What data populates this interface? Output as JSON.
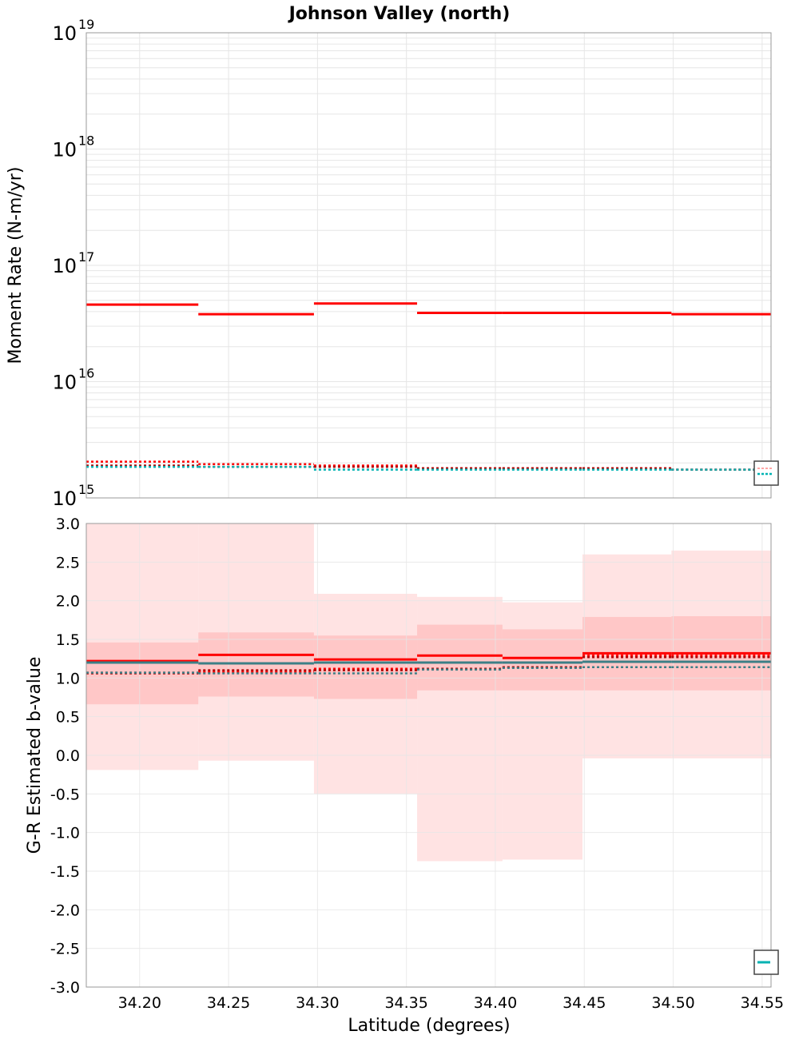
{
  "title": "Johnson Valley (north)",
  "colors": {
    "red": "#ff0000",
    "dark_red": "#b00000",
    "cyan": "#00b2b2",
    "teal": "#3c7f86",
    "band_outer": "#ffdede",
    "band_inner": "#ffc2c2",
    "grid": "#e6e6e6",
    "frame": "#999999"
  },
  "chart_data": [
    {
      "type": "line",
      "id": "moment",
      "title": "Johnson Valley (north)",
      "xlabel": "",
      "ylabel": "Moment Rate (N-m/yr)",
      "yscale": "log",
      "xlim": [
        34.17,
        34.555
      ],
      "ylim": [
        1000000000000000.0,
        1e+19
      ],
      "ytick_exponents": [
        15,
        16,
        17,
        18,
        19
      ],
      "ytick_base": "10",
      "bin_edges": [
        34.17,
        34.233,
        34.298,
        34.356,
        34.404,
        34.449,
        34.499,
        34.555
      ],
      "series": [
        {
          "name": "solid red",
          "style": "solid",
          "color": "red",
          "values": [
            4.6e+16,
            3.8e+16,
            4.7e+16,
            3.9e+16,
            3.9e+16,
            3.9e+16,
            3.8e+16
          ]
        },
        {
          "name": "dotted red",
          "style": "dotted",
          "color": "red",
          "values": [
            2050000000000000.0,
            1950000000000000.0,
            1900000000000000.0,
            1800000000000000.0,
            1800000000000000.0,
            1800000000000000.0,
            1750000000000000.0
          ]
        },
        {
          "name": "dotted dark red",
          "style": "dotted",
          "color": "dark_red",
          "values": [
            1900000000000000.0,
            1850000000000000.0,
            1850000000000000.0,
            1800000000000000.0,
            1800000000000000.0,
            1800000000000000.0,
            1750000000000000.0
          ]
        },
        {
          "name": "dotted cyan",
          "style": "dotted",
          "color": "cyan",
          "values": [
            1850000000000000.0,
            1850000000000000.0,
            1750000000000000.0,
            1750000000000000.0,
            1750000000000000.0,
            1750000000000000.0,
            1750000000000000.0
          ]
        }
      ],
      "legend": "bottom-right"
    },
    {
      "type": "line",
      "id": "bvalue",
      "title": "",
      "xlabel": "Latitude (degrees)",
      "ylabel": "G-R Estimated b-value",
      "yscale": "linear",
      "xlim": [
        34.17,
        34.555
      ],
      "ylim": [
        -3.0,
        3.0
      ],
      "xticks": [
        "34.20",
        "34.25",
        "34.30",
        "34.35",
        "34.40",
        "34.45",
        "34.50",
        "34.55"
      ],
      "xtick_values": [
        34.2,
        34.25,
        34.3,
        34.35,
        34.4,
        34.45,
        34.5,
        34.55
      ],
      "yticks": [
        "-3.0",
        "-2.5",
        "-2.0",
        "-1.5",
        "-1.0",
        "-0.5",
        "0.0",
        "0.5",
        "1.0",
        "1.5",
        "2.0",
        "2.5",
        "3.0"
      ],
      "ytick_values": [
        -3.0,
        -2.5,
        -2.0,
        -1.5,
        -1.0,
        -0.5,
        0.0,
        0.5,
        1.0,
        1.5,
        2.0,
        2.5,
        3.0
      ],
      "bin_edges": [
        34.17,
        34.233,
        34.298,
        34.356,
        34.404,
        34.449,
        34.499,
        34.555
      ],
      "outer_band": {
        "low": [
          -0.19,
          -0.07,
          -0.5,
          -1.37,
          -1.35,
          -0.04,
          -0.04
        ],
        "high": [
          3.0,
          3.0,
          2.09,
          2.05,
          1.98,
          2.6,
          2.65
        ]
      },
      "inner_band": {
        "low": [
          0.66,
          0.76,
          0.73,
          0.84,
          0.84,
          0.84,
          0.84
        ],
        "high": [
          1.46,
          1.59,
          1.55,
          1.69,
          1.63,
          1.79,
          1.8
        ]
      },
      "series": [
        {
          "name": "solid red",
          "style": "solid",
          "color": "red",
          "values": [
            1.22,
            1.3,
            1.24,
            1.29,
            1.26,
            1.32,
            1.32
          ]
        },
        {
          "name": "solid teal",
          "style": "solid",
          "color": "teal",
          "values": [
            1.2,
            1.19,
            1.2,
            1.2,
            1.2,
            1.21,
            1.21
          ]
        },
        {
          "name": "dotted red",
          "style": "dotted",
          "color": "red",
          "values": [
            1.07,
            1.08,
            1.12,
            1.11,
            1.14,
            1.29,
            1.29
          ]
        },
        {
          "name": "dotted dark red",
          "style": "dotted",
          "color": "dark_red",
          "values": [
            1.06,
            1.1,
            1.1,
            1.12,
            1.14,
            1.27,
            1.27
          ]
        },
        {
          "name": "dotted teal",
          "style": "dotted",
          "color": "teal",
          "values": [
            1.07,
            1.06,
            1.06,
            1.11,
            1.13,
            1.14,
            1.14
          ]
        }
      ],
      "legend": "bottom-right"
    }
  ]
}
